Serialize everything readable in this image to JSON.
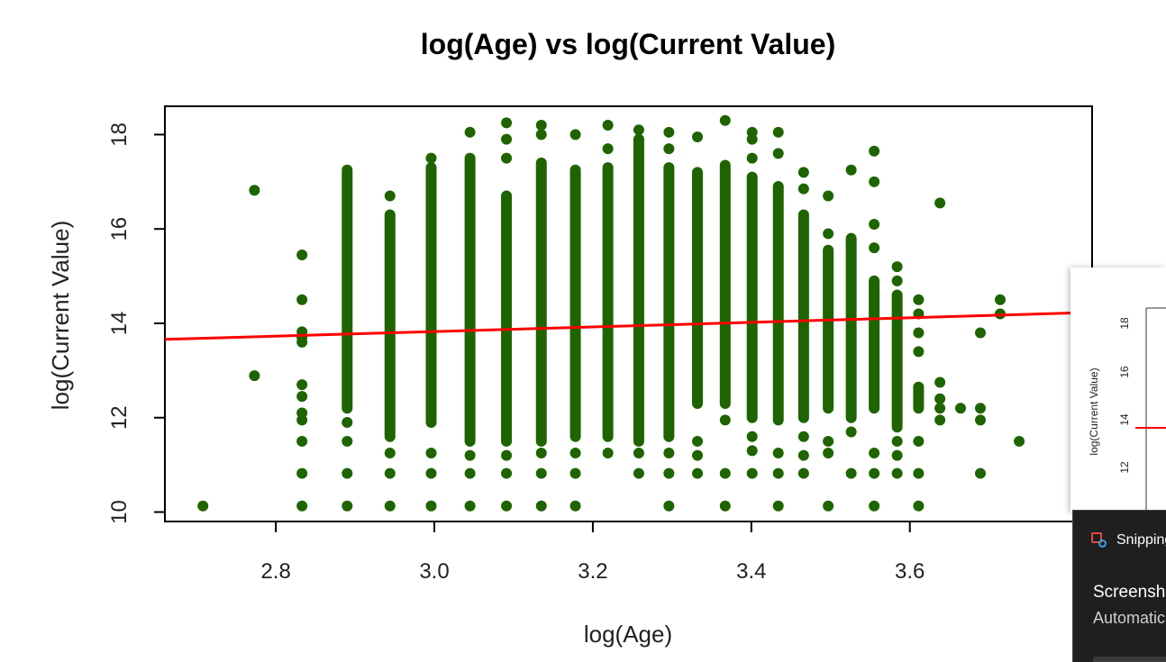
{
  "chart_data": {
    "type": "scatter",
    "title": "log(Age) vs log(Current Value)",
    "xlabel": "log(Age)",
    "ylabel": "log(Current Value)",
    "xlim": [
      2.66,
      3.83
    ],
    "ylim": [
      9.8,
      18.6
    ],
    "xticks": [
      "2.8",
      "3.0",
      "3.2",
      "3.4",
      "3.6"
    ],
    "yticks": [
      "10",
      "12",
      "14",
      "16",
      "18"
    ],
    "grid": false,
    "point_color": "#1e6400",
    "trend_color": "#ff0000",
    "trend_line": {
      "x": [
        2.66,
        3.83
      ],
      "y": [
        13.66,
        14.23
      ]
    },
    "series": [
      {
        "values": [
          [
            2.708,
            10.13
          ],
          [
            2.773,
            16.82
          ],
          [
            2.773,
            12.89
          ],
          [
            2.833,
            15.45
          ],
          [
            2.833,
            14.5
          ],
          [
            2.833,
            13.82
          ],
          [
            2.833,
            13.7
          ],
          [
            2.833,
            13.6
          ],
          [
            2.833,
            12.7
          ],
          [
            2.833,
            12.45
          ],
          [
            2.833,
            12.1
          ],
          [
            2.833,
            11.95
          ],
          [
            2.833,
            11.5
          ],
          [
            2.833,
            10.82
          ],
          [
            2.833,
            10.13
          ],
          [
            2.89,
            10.13
          ],
          [
            2.89,
            10.82
          ],
          [
            2.89,
            11.5
          ],
          [
            2.89,
            11.9
          ],
          [
            2.944,
            10.13
          ],
          [
            2.944,
            10.82
          ],
          [
            2.944,
            11.25
          ],
          [
            2.944,
            16.7
          ],
          [
            2.996,
            10.13
          ],
          [
            2.996,
            10.82
          ],
          [
            2.996,
            11.25
          ],
          [
            2.996,
            17.5
          ],
          [
            3.045,
            10.13
          ],
          [
            3.045,
            10.82
          ],
          [
            3.045,
            11.2
          ],
          [
            3.045,
            18.05
          ],
          [
            3.091,
            10.13
          ],
          [
            3.091,
            10.82
          ],
          [
            3.091,
            11.2
          ],
          [
            3.091,
            18.25
          ],
          [
            3.091,
            17.9
          ],
          [
            3.091,
            17.5
          ],
          [
            3.135,
            10.13
          ],
          [
            3.135,
            10.82
          ],
          [
            3.135,
            11.25
          ],
          [
            3.135,
            18.2
          ],
          [
            3.135,
            18.0
          ],
          [
            3.178,
            10.13
          ],
          [
            3.178,
            10.82
          ],
          [
            3.178,
            11.25
          ],
          [
            3.178,
            18.0
          ],
          [
            3.219,
            11.25
          ],
          [
            3.219,
            18.2
          ],
          [
            3.219,
            17.7
          ],
          [
            3.258,
            10.82
          ],
          [
            3.258,
            11.25
          ],
          [
            3.258,
            18.1
          ],
          [
            3.296,
            10.13
          ],
          [
            3.296,
            10.82
          ],
          [
            3.296,
            11.25
          ],
          [
            3.296,
            18.05
          ],
          [
            3.296,
            17.7
          ],
          [
            3.332,
            10.82
          ],
          [
            3.332,
            11.2
          ],
          [
            3.332,
            11.5
          ],
          [
            3.332,
            17.95
          ],
          [
            3.367,
            10.13
          ],
          [
            3.367,
            10.82
          ],
          [
            3.367,
            11.95
          ],
          [
            3.367,
            18.3
          ],
          [
            3.401,
            10.82
          ],
          [
            3.401,
            11.3
          ],
          [
            3.401,
            11.6
          ],
          [
            3.401,
            18.05
          ],
          [
            3.401,
            17.9
          ],
          [
            3.401,
            17.5
          ],
          [
            3.434,
            10.13
          ],
          [
            3.434,
            10.82
          ],
          [
            3.434,
            11.25
          ],
          [
            3.434,
            18.05
          ],
          [
            3.434,
            17.6
          ],
          [
            3.466,
            10.82
          ],
          [
            3.466,
            11.2
          ],
          [
            3.466,
            11.6
          ],
          [
            3.466,
            17.2
          ],
          [
            3.466,
            16.85
          ],
          [
            3.497,
            10.13
          ],
          [
            3.497,
            11.25
          ],
          [
            3.497,
            11.5
          ],
          [
            3.497,
            16.7
          ],
          [
            3.497,
            15.9
          ],
          [
            3.526,
            10.82
          ],
          [
            3.526,
            11.7
          ],
          [
            3.526,
            17.25
          ],
          [
            3.526,
            15.7
          ],
          [
            3.555,
            10.13
          ],
          [
            3.555,
            10.82
          ],
          [
            3.555,
            11.25
          ],
          [
            3.555,
            17.65
          ],
          [
            3.555,
            17.0
          ],
          [
            3.555,
            16.1
          ],
          [
            3.555,
            15.6
          ],
          [
            3.584,
            10.82
          ],
          [
            3.584,
            11.2
          ],
          [
            3.584,
            11.5
          ],
          [
            3.584,
            15.2
          ],
          [
            3.584,
            14.9
          ],
          [
            3.611,
            10.13
          ],
          [
            3.611,
            10.82
          ],
          [
            3.611,
            11.5
          ],
          [
            3.611,
            14.5
          ],
          [
            3.611,
            14.2
          ],
          [
            3.611,
            13.8
          ],
          [
            3.611,
            13.4
          ],
          [
            3.638,
            12.75
          ],
          [
            3.638,
            12.4
          ],
          [
            3.638,
            12.2
          ],
          [
            3.638,
            11.95
          ],
          [
            3.638,
            16.55
          ],
          [
            3.664,
            12.2
          ],
          [
            3.689,
            13.8
          ],
          [
            3.689,
            12.2
          ],
          [
            3.689,
            11.95
          ],
          [
            3.689,
            10.82
          ],
          [
            3.714,
            14.5
          ],
          [
            3.714,
            14.2
          ],
          [
            3.738,
            11.5
          ]
        ]
      }
    ],
    "dense_columns": [
      {
        "x": 2.89,
        "y_from": 12.2,
        "y_to": 17.25
      },
      {
        "x": 2.944,
        "y_from": 11.6,
        "y_to": 16.3
      },
      {
        "x": 2.996,
        "y_from": 11.9,
        "y_to": 17.3
      },
      {
        "x": 3.045,
        "y_from": 11.5,
        "y_to": 17.5
      },
      {
        "x": 3.091,
        "y_from": 11.5,
        "y_to": 16.7
      },
      {
        "x": 3.135,
        "y_from": 11.5,
        "y_to": 17.4
      },
      {
        "x": 3.178,
        "y_from": 11.6,
        "y_to": 17.25
      },
      {
        "x": 3.219,
        "y_from": 11.6,
        "y_to": 17.3
      },
      {
        "x": 3.258,
        "y_from": 11.5,
        "y_to": 17.9
      },
      {
        "x": 3.296,
        "y_from": 11.6,
        "y_to": 17.3
      },
      {
        "x": 3.332,
        "y_from": 12.3,
        "y_to": 17.2
      },
      {
        "x": 3.367,
        "y_from": 12.3,
        "y_to": 17.35
      },
      {
        "x": 3.401,
        "y_from": 12.0,
        "y_to": 17.1
      },
      {
        "x": 3.434,
        "y_from": 11.95,
        "y_to": 16.9
      },
      {
        "x": 3.466,
        "y_from": 12.0,
        "y_to": 16.3
      },
      {
        "x": 3.497,
        "y_from": 12.2,
        "y_to": 15.55
      },
      {
        "x": 3.526,
        "y_from": 12.0,
        "y_to": 15.8
      },
      {
        "x": 3.555,
        "y_from": 12.2,
        "y_to": 14.9
      },
      {
        "x": 3.584,
        "y_from": 11.8,
        "y_to": 14.6
      },
      {
        "x": 3.611,
        "y_from": 12.2,
        "y_to": 12.65
      }
    ]
  },
  "thumbnail": {
    "ylabel": "log(Current Value)",
    "yticks": [
      "18",
      "16",
      "14",
      "12"
    ]
  },
  "notification": {
    "app_name": "Snipping Tool",
    "title": "Screenshot copied to clipboard",
    "body": "Automatically saved to screenshots folder"
  }
}
